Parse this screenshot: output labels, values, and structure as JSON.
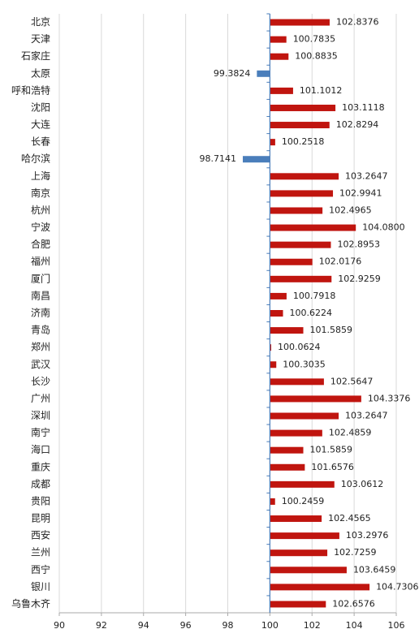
{
  "chart_data": {
    "type": "hbar",
    "categories": [
      "北京",
      "天津",
      "石家庄",
      "太原",
      "呼和浩特",
      "沈阳",
      "大连",
      "长春",
      "哈尔滨",
      "上海",
      "南京",
      "杭州",
      "宁波",
      "合肥",
      "福州",
      "厦门",
      "南昌",
      "济南",
      "青岛",
      "郑州",
      "武汉",
      "长沙",
      "广州",
      "深圳",
      "南宁",
      "海口",
      "重庆",
      "成都",
      "贵阳",
      "昆明",
      "西安",
      "兰州",
      "西宁",
      "银川",
      "乌鲁木齐"
    ],
    "values": [
      102.8376,
      100.7835,
      100.8835,
      99.3824,
      101.1012,
      103.1118,
      102.8294,
      100.2518,
      98.7141,
      103.2647,
      102.9941,
      102.4965,
      104.08,
      102.8953,
      102.0176,
      102.9259,
      100.7918,
      100.6224,
      101.5859,
      100.0624,
      100.3035,
      102.5647,
      104.3376,
      103.2647,
      102.4859,
      101.5859,
      101.6576,
      103.0612,
      100.2459,
      102.4565,
      103.2976,
      102.7259,
      103.6459,
      104.7306,
      102.6576
    ],
    "value_labels": [
      "102.8376",
      "100.7835",
      "100.8835",
      "99.3824",
      "101.1012",
      "103.1118",
      "102.8294",
      "100.2518",
      "98.7141",
      "103.2647",
      "102.9941",
      "102.4965",
      "104.0800",
      "102.8953",
      "102.0176",
      "102.9259",
      "100.7918",
      "100.6224",
      "101.5859",
      "100.0624",
      "100.3035",
      "102.5647",
      "104.3376",
      "103.2647",
      "102.4859",
      "101.5859",
      "101.6576",
      "103.0612",
      "100.2459",
      "102.4565",
      "103.2976",
      "102.7259",
      "103.6459",
      "104.7306",
      "102.6576"
    ],
    "baseline": 100,
    "positive_color": "#c0150f",
    "negative_color": "#4a7ebb",
    "xlim": [
      90,
      106
    ],
    "xticks": [
      90,
      92,
      94,
      96,
      98,
      100,
      102,
      104,
      106
    ],
    "grid": true
  }
}
